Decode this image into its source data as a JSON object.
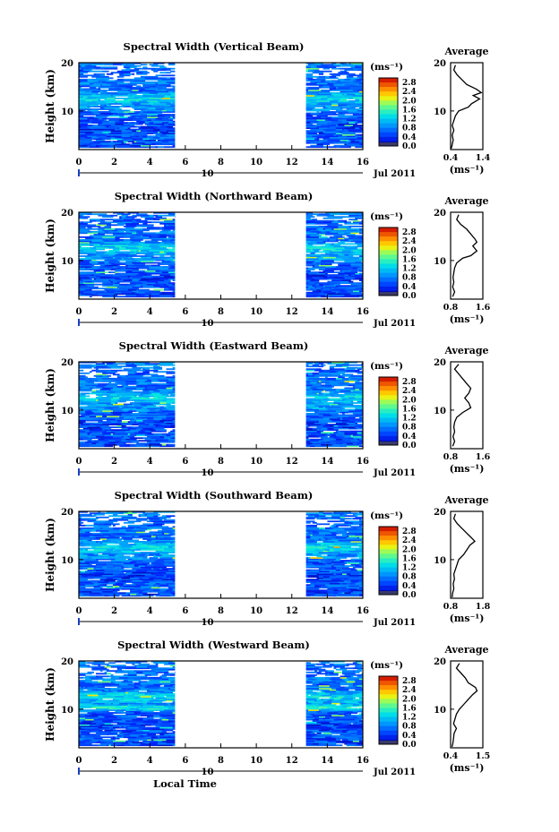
{
  "chart_data": [
    {
      "type": "heatmap",
      "title": "Spectral Width (Vertical Beam)",
      "ylabel": "Height (km)",
      "yticks": [
        "20",
        "10"
      ],
      "xticks": [
        "0",
        "2",
        "4",
        "6",
        "8",
        "10",
        "12",
        "14",
        "16"
      ],
      "xlim": [
        0,
        16
      ],
      "ylim": [
        2,
        20
      ],
      "date_day": "10",
      "date_label": "Jul 2011",
      "gaps": [
        [
          5.4,
          12.8
        ]
      ],
      "colorbar": {
        "unit": "(ms⁻¹)",
        "ticks": [
          "2.8",
          "2.4",
          "2.0",
          "1.6",
          "1.2",
          "0.8",
          "0.4",
          "0.0"
        ],
        "range": [
          0,
          3.0
        ]
      },
      "average": {
        "title": "Average",
        "xlabel": "(ms⁻¹)",
        "xticks": [
          "0.4",
          "1.4"
        ],
        "xlim": [
          0.4,
          1.4
        ],
        "yticks": [
          "20",
          "10"
        ],
        "profile": [
          [
            19.5,
            0.55
          ],
          [
            18.5,
            0.5
          ],
          [
            17.5,
            0.6
          ],
          [
            16.5,
            0.75
          ],
          [
            15.5,
            0.9
          ],
          [
            14.5,
            1.2
          ],
          [
            13.8,
            1.35
          ],
          [
            13.2,
            1.1
          ],
          [
            12.5,
            1.3
          ],
          [
            11.5,
            1.05
          ],
          [
            10.8,
            0.95
          ],
          [
            10.0,
            0.65
          ],
          [
            9.0,
            0.55
          ],
          [
            8.0,
            0.5
          ],
          [
            7.0,
            0.45
          ],
          [
            6.0,
            0.5
          ],
          [
            5.0,
            0.45
          ],
          [
            4.0,
            0.48
          ],
          [
            3.0,
            0.45
          ],
          [
            2.2,
            0.42
          ]
        ]
      }
    },
    {
      "type": "heatmap",
      "title": "Spectral Width (Northward Beam)",
      "ylabel": "Height (km)",
      "yticks": [
        "20",
        "10"
      ],
      "xticks": [
        "0",
        "2",
        "4",
        "6",
        "8",
        "10",
        "12",
        "14",
        "16"
      ],
      "xlim": [
        0,
        16
      ],
      "ylim": [
        2,
        20
      ],
      "date_day": "10",
      "date_label": "Jul 2011",
      "gaps": [
        [
          5.4,
          12.8
        ]
      ],
      "colorbar": {
        "unit": "(ms⁻¹)",
        "ticks": [
          "2.8",
          "2.4",
          "2.0",
          "1.6",
          "1.2",
          "0.8",
          "0.4",
          "0.0"
        ],
        "range": [
          0,
          3.0
        ]
      },
      "average": {
        "title": "Average",
        "xlabel": "(ms⁻¹)",
        "xticks": [
          "0.8",
          "1.6"
        ],
        "xlim": [
          0.8,
          1.6
        ],
        "yticks": [
          "20",
          "10"
        ],
        "profile": [
          [
            19.5,
            1.0
          ],
          [
            18.5,
            0.95
          ],
          [
            17.5,
            1.05
          ],
          [
            16.5,
            1.2
          ],
          [
            15.5,
            1.3
          ],
          [
            14.5,
            1.4
          ],
          [
            13.8,
            1.45
          ],
          [
            13.0,
            1.35
          ],
          [
            12.0,
            1.45
          ],
          [
            11.0,
            1.3
          ],
          [
            10.5,
            1.1
          ],
          [
            9.5,
            0.95
          ],
          [
            8.5,
            0.9
          ],
          [
            7.5,
            0.88
          ],
          [
            6.5,
            0.86
          ],
          [
            5.5,
            0.88
          ],
          [
            4.5,
            0.85
          ],
          [
            3.5,
            0.9
          ],
          [
            2.5,
            0.85
          ]
        ]
      }
    },
    {
      "type": "heatmap",
      "title": "Spectral Width (Eastward Beam)",
      "ylabel": "Height (km)",
      "yticks": [
        "20",
        "10"
      ],
      "xticks": [
        "0",
        "2",
        "4",
        "6",
        "8",
        "10",
        "12",
        "14",
        "16"
      ],
      "xlim": [
        0,
        16
      ],
      "ylim": [
        2,
        20
      ],
      "date_day": "10",
      "date_label": "Jul 2011",
      "gaps": [
        [
          5.4,
          12.8
        ]
      ],
      "colorbar": {
        "unit": "(ms⁻¹)",
        "ticks": [
          "2.8",
          "2.4",
          "2.0",
          "1.6",
          "1.2",
          "0.8",
          "0.4",
          "0.0"
        ],
        "range": [
          0,
          3.0
        ]
      },
      "average": {
        "title": "Average",
        "xlabel": "(ms⁻¹)",
        "xticks": [
          "0.8",
          "1.6"
        ],
        "xlim": [
          0.8,
          1.6
        ],
        "yticks": [
          "20",
          "10"
        ],
        "profile": [
          [
            19.5,
            1.0
          ],
          [
            18.5,
            0.9
          ],
          [
            17.5,
            1.0
          ],
          [
            16.5,
            1.1
          ],
          [
            15.5,
            1.2
          ],
          [
            14.5,
            1.3
          ],
          [
            13.5,
            1.25
          ],
          [
            12.5,
            1.15
          ],
          [
            11.5,
            1.25
          ],
          [
            10.5,
            1.3
          ],
          [
            9.5,
            1.1
          ],
          [
            8.5,
            0.95
          ],
          [
            7.5,
            0.9
          ],
          [
            6.5,
            0.88
          ],
          [
            5.5,
            0.9
          ],
          [
            4.5,
            0.86
          ],
          [
            3.5,
            0.9
          ],
          [
            2.5,
            0.85
          ]
        ]
      }
    },
    {
      "type": "heatmap",
      "title": "Spectral Width (Southward Beam)",
      "ylabel": "Height (km)",
      "yticks": [
        "20",
        "10"
      ],
      "xticks": [
        "0",
        "2",
        "4",
        "6",
        "8",
        "10",
        "12",
        "14",
        "16"
      ],
      "xlim": [
        0,
        16
      ],
      "ylim": [
        2,
        20
      ],
      "date_day": "10",
      "date_label": "Jul 2011",
      "gaps": [
        [
          5.4,
          12.8
        ]
      ],
      "colorbar": {
        "unit": "(ms⁻¹)",
        "ticks": [
          "2.8",
          "2.4",
          "2.0",
          "1.6",
          "1.2",
          "0.8",
          "0.4",
          "0.0"
        ],
        "range": [
          0,
          3.0
        ]
      },
      "average": {
        "title": "Average",
        "xlabel": "(ms⁻¹)",
        "xticks": [
          "0.8",
          "1.8"
        ],
        "xlim": [
          0.8,
          1.8
        ],
        "yticks": [
          "20",
          "10"
        ],
        "profile": [
          [
            19.5,
            0.95
          ],
          [
            18.5,
            0.9
          ],
          [
            17.5,
            1.0
          ],
          [
            16.5,
            1.15
          ],
          [
            15.5,
            1.3
          ],
          [
            14.5,
            1.45
          ],
          [
            13.8,
            1.55
          ],
          [
            13.0,
            1.4
          ],
          [
            12.0,
            1.3
          ],
          [
            11.0,
            1.2
          ],
          [
            10.0,
            1.05
          ],
          [
            9.0,
            1.0
          ],
          [
            8.0,
            0.95
          ],
          [
            7.0,
            0.9
          ],
          [
            6.0,
            0.92
          ],
          [
            5.0,
            0.88
          ],
          [
            4.0,
            0.9
          ],
          [
            3.0,
            0.86
          ],
          [
            2.2,
            0.85
          ]
        ]
      }
    },
    {
      "type": "heatmap",
      "title": "Spectral Width (Westward Beam)",
      "ylabel": "Height (km)",
      "yticks": [
        "20",
        "10"
      ],
      "xticks": [
        "0",
        "2",
        "4",
        "6",
        "8",
        "10",
        "12",
        "14",
        "16"
      ],
      "xlim": [
        0,
        16
      ],
      "ylim": [
        2,
        20
      ],
      "date_day": "10",
      "date_label": "Jul 2011",
      "gaps": [
        [
          5.4,
          12.8
        ]
      ],
      "colorbar": {
        "unit": "(ms⁻¹)",
        "ticks": [
          "2.8",
          "2.4",
          "2.0",
          "1.6",
          "1.2",
          "0.8",
          "0.4",
          "0.0"
        ],
        "range": [
          0,
          3.0
        ]
      },
      "average": {
        "title": "Average",
        "xlabel": "(ms⁻¹)",
        "xticks": [
          "0.4",
          "1.5"
        ],
        "xlim": [
          0.4,
          1.5
        ],
        "yticks": [
          "20",
          "10"
        ],
        "profile": [
          [
            19.5,
            0.7
          ],
          [
            18.5,
            0.6
          ],
          [
            17.5,
            0.75
          ],
          [
            16.5,
            0.9
          ],
          [
            15.5,
            1.0
          ],
          [
            14.5,
            1.25
          ],
          [
            13.8,
            1.3
          ],
          [
            13.0,
            1.15
          ],
          [
            12.0,
            1.0
          ],
          [
            11.0,
            0.85
          ],
          [
            10.0,
            0.7
          ],
          [
            9.0,
            0.6
          ],
          [
            8.0,
            0.55
          ],
          [
            7.0,
            0.5
          ],
          [
            6.0,
            0.6
          ],
          [
            5.0,
            0.52
          ],
          [
            4.0,
            0.5
          ],
          [
            3.0,
            0.48
          ],
          [
            2.2,
            0.45
          ]
        ]
      }
    }
  ],
  "xlabel": "Local Time"
}
